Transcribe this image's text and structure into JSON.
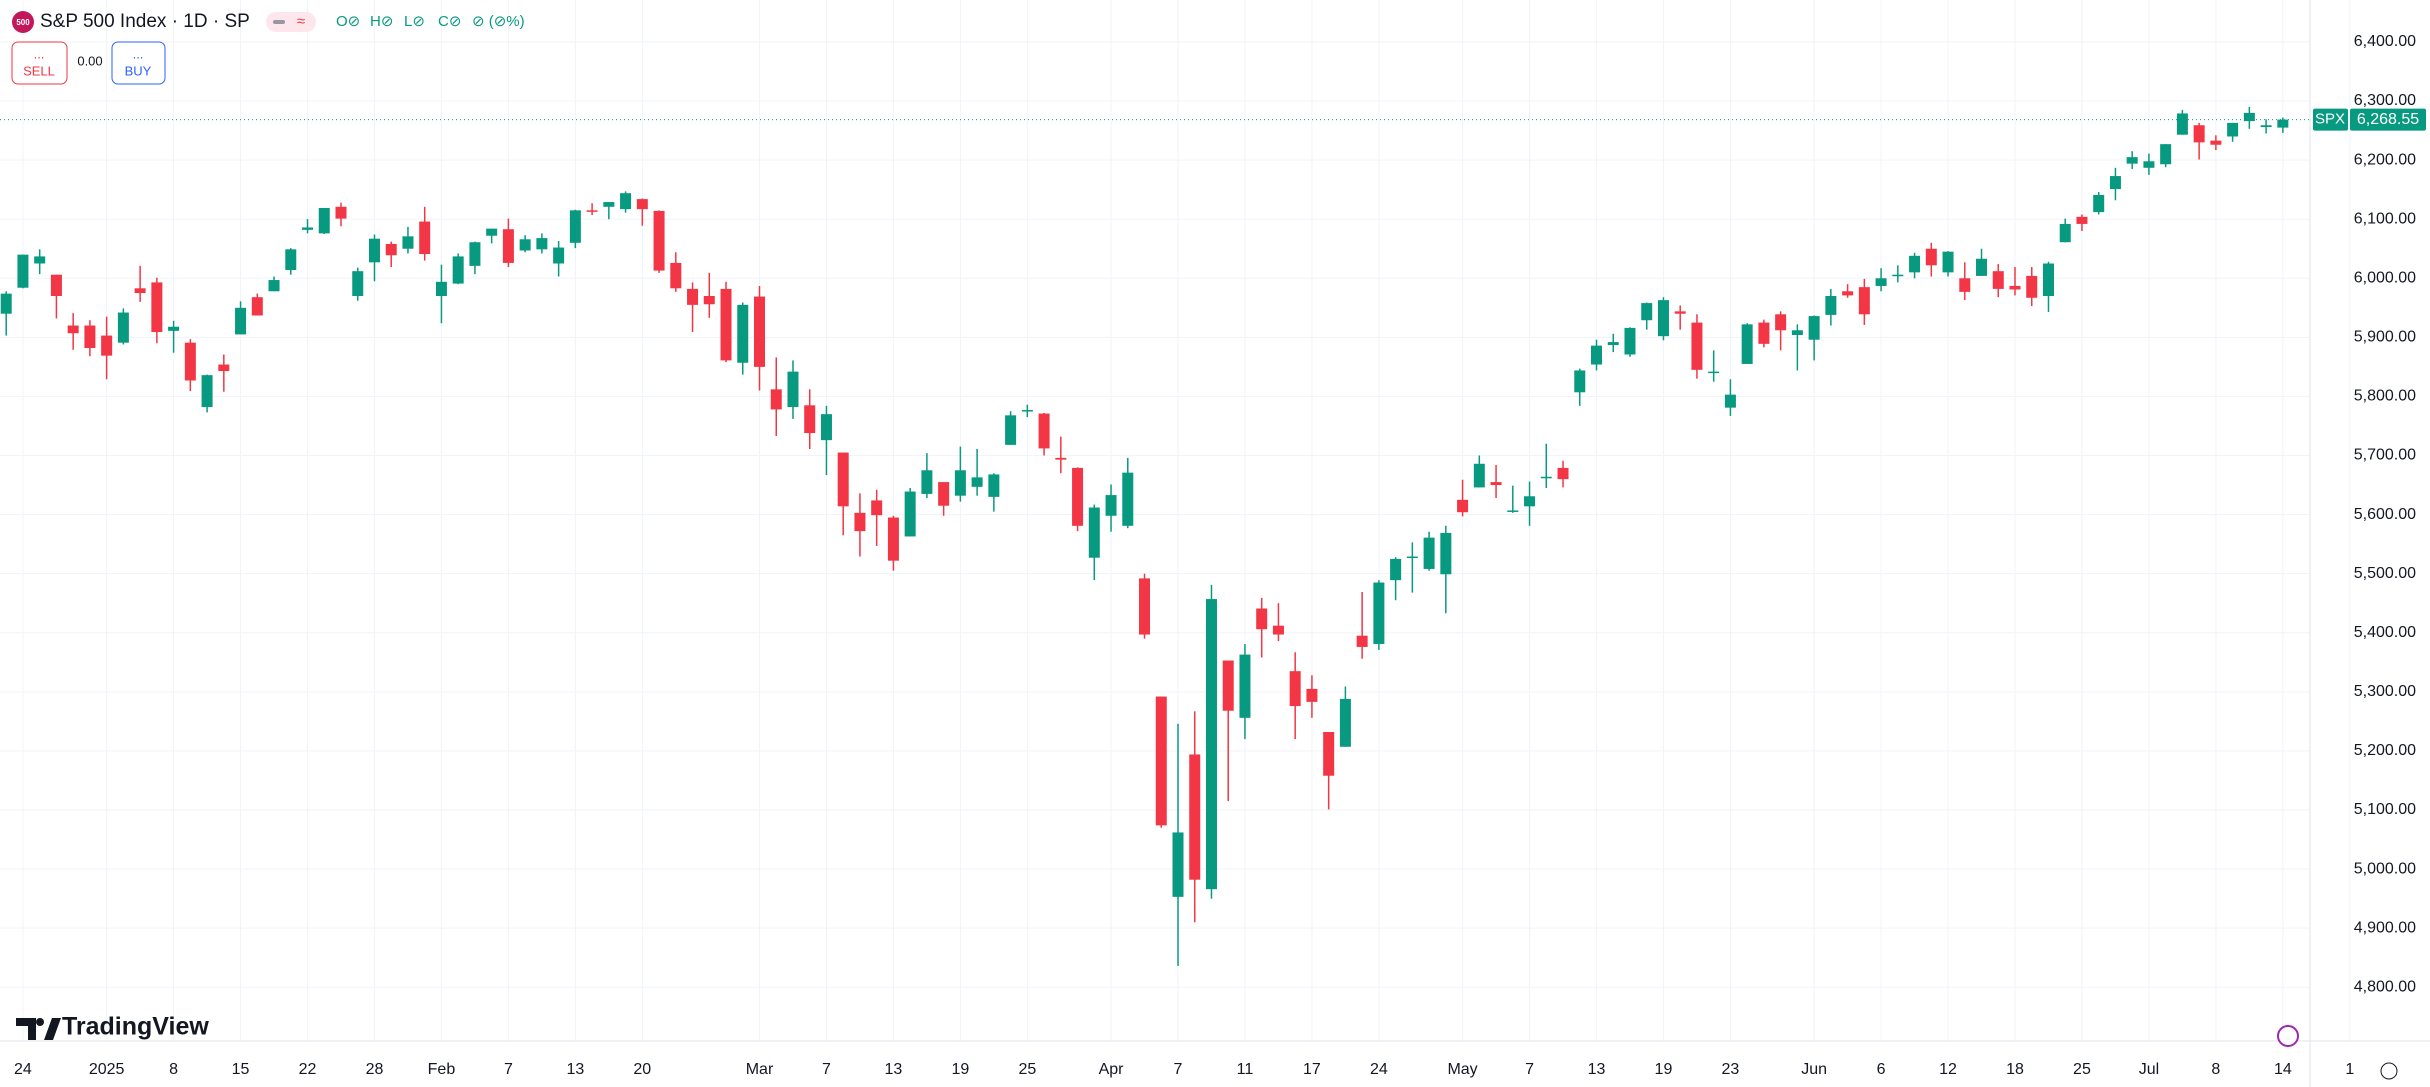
{
  "toolbar": {
    "logo": "500",
    "sell_dots": "...",
    "sell": "SELL",
    "spread": "0.00",
    "buy_dots": "...",
    "buy": "BUY",
    "brand": "TradingView"
  },
  "chart_data": {
    "type": "candlestick",
    "title": "S&P 500 Index · 1D · SP",
    "legend_ohlc": [
      "O⊘",
      "H⊘",
      "L⊘",
      "C⊘",
      "⊘ (⊘%)"
    ],
    "symbol": "SPX",
    "last_price_label": "6,268.55",
    "up_color": "#089981",
    "down_color": "#f23645",
    "grid": true,
    "ylim": [
      4709,
      6471
    ],
    "yticks": [
      {
        "value": 4800,
        "label": "4,800.00"
      },
      {
        "value": 4900,
        "label": "4,900.00"
      },
      {
        "value": 5000,
        "label": "5,000.00"
      },
      {
        "value": 5100,
        "label": "5,100.00"
      },
      {
        "value": 5200,
        "label": "5,200.00"
      },
      {
        "value": 5300,
        "label": "5,300.00"
      },
      {
        "value": 5400,
        "label": "5,400.00"
      },
      {
        "value": 5500,
        "label": "5,500.00"
      },
      {
        "value": 5600,
        "label": "5,600.00"
      },
      {
        "value": 5700,
        "label": "5,700.00"
      },
      {
        "value": 5800,
        "label": "5,800.00"
      },
      {
        "value": 5900,
        "label": "5,900.00"
      },
      {
        "value": 6000,
        "label": "6,000.00"
      },
      {
        "value": 6100,
        "label": "6,100.00"
      },
      {
        "value": 6200,
        "label": "6,200.00"
      },
      {
        "value": 6300,
        "label": "6,300.00"
      },
      {
        "value": 6400,
        "label": "6,400.00"
      }
    ],
    "categories": [
      null,
      "24",
      null,
      null,
      null,
      null,
      "2025",
      null,
      null,
      null,
      "8",
      null,
      null,
      null,
      "15",
      null,
      null,
      null,
      "22",
      null,
      null,
      null,
      "28",
      null,
      null,
      null,
      "Feb",
      null,
      null,
      null,
      "7",
      null,
      null,
      null,
      "13",
      null,
      null,
      null,
      "20",
      null,
      null,
      null,
      null,
      null,
      null,
      "Mar",
      null,
      null,
      null,
      "7",
      null,
      null,
      null,
      "13",
      null,
      null,
      null,
      "19",
      null,
      null,
      null,
      "25",
      null,
      null,
      null,
      null,
      "Apr",
      null,
      null,
      null,
      "7",
      null,
      null,
      null,
      "11",
      null,
      null,
      null,
      "17",
      null,
      null,
      null,
      "24",
      null,
      null,
      null,
      null,
      "May",
      null,
      null,
      null,
      "7",
      null,
      null,
      null,
      "13",
      null,
      null,
      null,
      "19",
      null,
      null,
      null,
      "23",
      null,
      null,
      null,
      null,
      "Jun",
      null,
      null,
      null,
      "6",
      null,
      null,
      null,
      "12",
      null,
      null,
      null,
      "18",
      null,
      null,
      null,
      "25",
      null,
      null,
      null,
      "Jul",
      null,
      null,
      null,
      "8",
      null,
      null,
      null,
      "14",
      null,
      null,
      null,
      "1"
    ],
    "open": [
      5940,
      5984,
      6025,
      6006,
      5920,
      5920,
      5903,
      5891,
      5983,
      5993,
      5911,
      5891,
      5782,
      5854,
      5905,
      5968,
      5978,
      6014,
      6082,
      6076,
      6121,
      5970,
      6027,
      6058,
      6050,
      6096,
      5970,
      5991,
      6021,
      6072,
      6083,
      6047,
      6049,
      6025,
      6060,
      6115,
      6121,
      6117,
      6134,
      6114,
      6026,
      5982,
      5970,
      5982,
      5857,
      5969,
      5812,
      5782,
      5785,
      5726,
      5705,
      5603,
      5624,
      5595,
      5563,
      5635,
      5655,
      5632,
      5647,
      5630,
      5718,
      5776,
      5771,
      5696,
      5679,
      5527,
      5598,
      5581,
      5492,
      5292,
      4953,
      5194,
      4966,
      5353,
      5256,
      5441,
      5412,
      5335,
      5305,
      5232,
      5207,
      5395,
      5381,
      5489,
      5529,
      5508,
      5499,
      5625,
      5646,
      5655,
      5605,
      5614,
      5663,
      5679,
      5807,
      5854,
      5887,
      5871,
      5929,
      5902,
      5944,
      5925,
      5842,
      5781,
      5855,
      5925,
      5939,
      5904,
      5896,
      5938,
      5978,
      5985,
      5987,
      6005,
      6010,
      6050,
      6010,
      6000,
      6004,
      6012,
      5987,
      6004,
      5970,
      6061,
      6104,
      6112,
      6151,
      6194,
      6187,
      6193,
      6243,
      6259,
      6233,
      6240,
      6266,
      6256,
      6255,
      null,
      null,
      null,
      null
    ],
    "high": [
      5978,
      6040,
      6049,
      6006,
      5941,
      5929,
      5935,
      5949,
      6021,
      6001,
      5928,
      5897,
      5837,
      5871,
      5961,
      5974,
      6003,
      6051,
      6100,
      6119,
      6128,
      6018,
      6074,
      6062,
      6087,
      6121,
      6023,
      6042,
      6062,
      6084,
      6101,
      6073,
      6076,
      6063,
      6116,
      6127,
      6129,
      6147,
      6135,
      6115,
      6044,
      5993,
      6009,
      5994,
      5959,
      5987,
      5866,
      5861,
      5812,
      5784,
      5705,
      5636,
      5642,
      5598,
      5645,
      5704,
      5655,
      5715,
      5711,
      5670,
      5775,
      5786,
      5772,
      5732,
      5680,
      5617,
      5651,
      5696,
      5500,
      5292,
      5246,
      5267,
      5481,
      5353,
      5381,
      5459,
      5450,
      5367,
      5328,
      5232,
      5309,
      5469,
      5489,
      5528,
      5553,
      5571,
      5581,
      5659,
      5700,
      5684,
      5649,
      5656,
      5720,
      5691,
      5847,
      5896,
      5906,
      5917,
      5959,
      5968,
      5954,
      5939,
      5878,
      5829,
      5924,
      5930,
      5944,
      5922,
      5937,
      5982,
      5990,
      5999,
      6017,
      6022,
      6043,
      6060,
      6046,
      6027,
      6050,
      6024,
      6019,
      6019,
      6028,
      6101,
      6108,
      6146,
      6187,
      6215,
      6211,
      6227,
      6285,
      6263,
      6242,
      6263,
      6290,
      6269,
      6272,
      null,
      null,
      null,
      null
    ],
    "low": [
      5903,
      5983,
      6007,
      5932,
      5879,
      5868,
      5829,
      5888,
      5960,
      5890,
      5874,
      5809,
      5773,
      5808,
      5905,
      5937,
      5978,
      6006,
      6076,
      6075,
      6088,
      5962,
      5995,
      6019,
      6042,
      6030,
      5924,
      5990,
      6007,
      6059,
      6019,
      6044,
      6042,
      6003,
      6051,
      6107,
      6100,
      6111,
      6089,
      6009,
      5977,
      5909,
      5933,
      5858,
      5837,
      5810,
      5733,
      5762,
      5711,
      5667,
      5565,
      5529,
      5547,
      5505,
      5563,
      5628,
      5598,
      5622,
      5632,
      5605,
      5718,
      5765,
      5700,
      5670,
      5572,
      5489,
      5571,
      5577,
      5390,
      5070,
      4836,
      4910,
      4950,
      5115,
      5220,
      5358,
      5386,
      5220,
      5256,
      5101,
      5207,
      5356,
      5371,
      5455,
      5468,
      5505,
      5433,
      5597,
      5646,
      5628,
      5603,
      5581,
      5645,
      5646,
      5784,
      5844,
      5875,
      5867,
      5913,
      5895,
      5913,
      5830,
      5825,
      5767,
      5855,
      5883,
      5878,
      5844,
      5861,
      5920,
      5967,
      5921,
      5978,
      5993,
      6000,
      6003,
      6003,
      5963,
      6004,
      5968,
      5971,
      5953,
      5943,
      6061,
      6080,
      6108,
      6132,
      6185,
      6175,
      6188,
      6243,
      6201,
      6217,
      6231,
      6253,
      6245,
      6246,
      null,
      null,
      null,
      null
    ],
    "close": [
      5974,
      6040,
      6037,
      5970,
      5907,
      5882,
      5869,
      5942,
      5975,
      5909,
      5918,
      5827,
      5836,
      5843,
      5950,
      5937,
      5997,
      6049,
      6086,
      6119,
      6101,
      6012,
      6067,
      6039,
      6071,
      6041,
      5994,
      6037,
      6061,
      6084,
      6026,
      6066,
      6068,
      6052,
      6115,
      6114,
      6129,
      6144,
      6117,
      6013,
      5983,
      5955,
      5956,
      5861,
      5955,
      5850,
      5778,
      5842,
      5738,
      5770,
      5614,
      5572,
      5599,
      5522,
      5639,
      5675,
      5615,
      5675,
      5663,
      5668,
      5768,
      5777,
      5712,
      5693,
      5581,
      5612,
      5633,
      5671,
      5397,
      5074,
      5062,
      4982,
      5457,
      5268,
      5363,
      5406,
      5397,
      5276,
      5283,
      5158,
      5288,
      5376,
      5485,
      5525,
      5529,
      5561,
      5569,
      5604,
      5686,
      5650,
      5607,
      5631,
      5664,
      5660,
      5844,
      5886,
      5892,
      5916,
      5958,
      5963,
      5940,
      5845,
      5842,
      5803,
      5922,
      5889,
      5912,
      5912,
      5936,
      5970,
      5971,
      5939,
      6000,
      6006,
      6038,
      6022,
      6045,
      5977,
      6033,
      5982,
      5981,
      5967,
      6025,
      6092,
      6092,
      6141,
      6173,
      6205,
      6198,
      6227,
      6279,
      6230,
      6226,
      6263,
      6280,
      6259,
      6268.55,
      null,
      null,
      null,
      null
    ]
  }
}
